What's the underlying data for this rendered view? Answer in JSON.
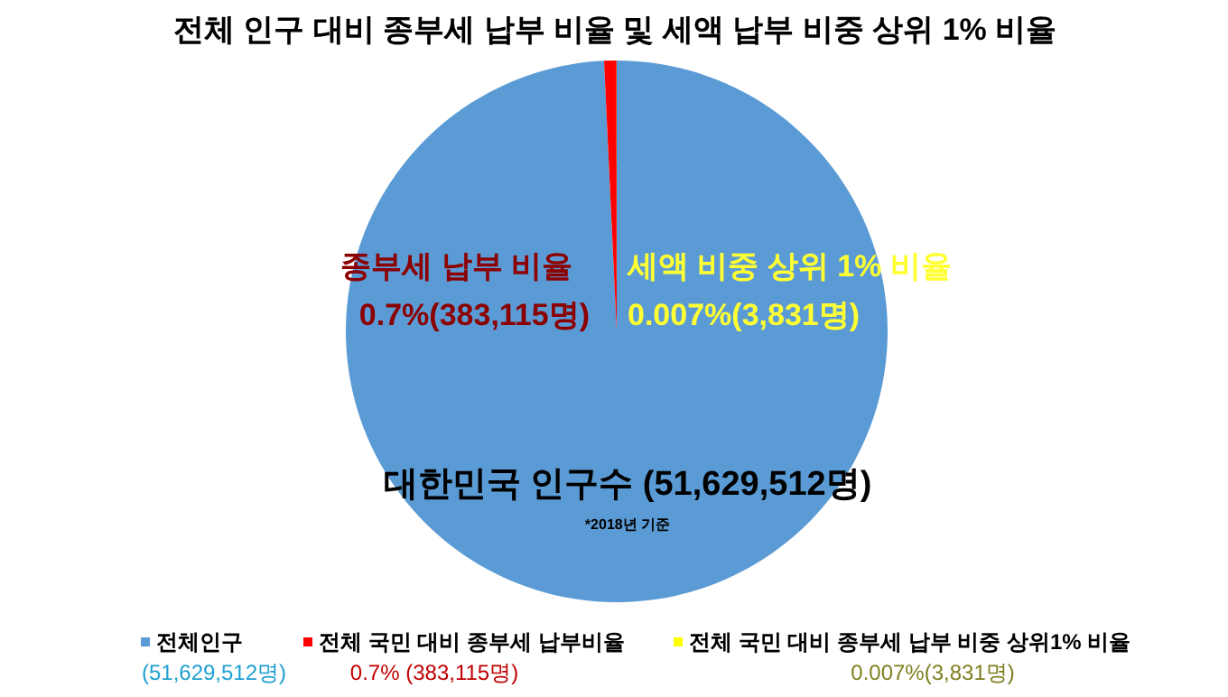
{
  "chart_data": {
    "type": "pie",
    "title": "전체 인구 대비 종부세 납부 비율 및 세액 납부 비중 상위 1% 비율",
    "categories": [
      "전체인구",
      "전체 국민 대비 종부세 납부비율",
      "전체 국민 대비 종부세 납부 비중 상위1% 비율"
    ],
    "values": [
      51629512,
      383115,
      3831
    ],
    "colors": [
      "#5b9bd5",
      "#ff0000",
      "#ffff00"
    ],
    "value_labels": [
      "(51,629,512명)",
      "0.7% (383,115명)",
      "0.007%(3,831명)"
    ],
    "annotations": [
      "종부세  납부  비율",
      "0.7%(383,115명)",
      "세액 비중 상위 1% 비율",
      "0.007%(3,831명)",
      "대한민국 인구수 (51,629,512명)",
      "*2018년 기준"
    ],
    "legend": "bottom"
  }
}
